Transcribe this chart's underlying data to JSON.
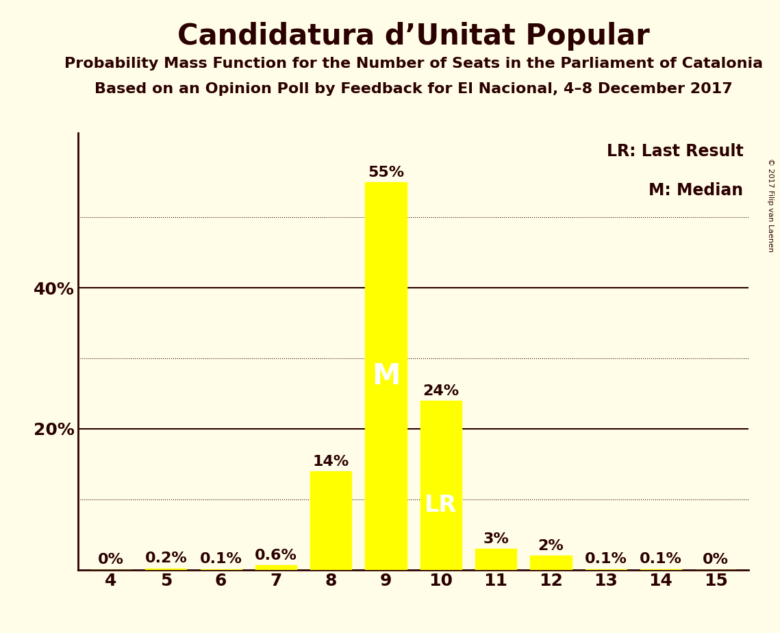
{
  "title": "Candidatura d’Unitat Popular",
  "subtitle1": "Probability Mass Function for the Number of Seats in the Parliament of Catalonia",
  "subtitle2": "Based on an Opinion Poll by Feedback for El Nacional, 4–8 December 2017",
  "copyright": "© 2017 Filip van Laenen",
  "x_values": [
    4,
    5,
    6,
    7,
    8,
    9,
    10,
    11,
    12,
    13,
    14,
    15
  ],
  "y_values": [
    0.0,
    0.2,
    0.1,
    0.6,
    14.0,
    55.0,
    24.0,
    3.0,
    2.0,
    0.1,
    0.1,
    0.0
  ],
  "bar_color": "#FFFF00",
  "background_color": "#FFFDE7",
  "text_color": "#2B0000",
  "median_seat": 9,
  "last_result_seat": 10,
  "legend_lr": "LR: Last Result",
  "legend_m": "M: Median",
  "ymax": 62,
  "dotted_yticks": [
    10,
    30,
    50
  ],
  "solid_yticks": [
    20,
    40
  ],
  "bar_label_fontsize": 16,
  "title_fontsize": 30,
  "subtitle_fontsize": 16,
  "axis_tick_fontsize": 18,
  "legend_fontsize": 17,
  "bar_width": 0.75
}
